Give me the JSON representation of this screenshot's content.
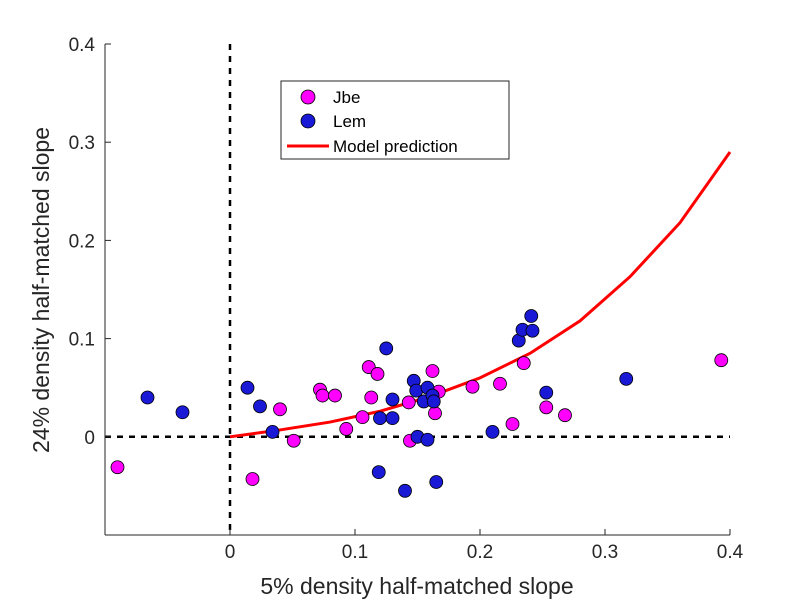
{
  "chart_data": {
    "type": "scatter",
    "title": "",
    "xlabel": "5% density half-matched slope",
    "ylabel": "24% density half-matched slope",
    "xlim": [
      -0.1,
      0.4
    ],
    "ylim": [
      -0.1,
      0.4
    ],
    "xticks": [
      {
        "value": 0,
        "label": "0"
      },
      {
        "value": 0.1,
        "label": "0.1"
      },
      {
        "value": 0.2,
        "label": "0.2"
      },
      {
        "value": 0.3,
        "label": "0.3"
      },
      {
        "value": 0.4,
        "label": "0.4"
      }
    ],
    "yticks": [
      {
        "value": 0,
        "label": "0"
      },
      {
        "value": 0.1,
        "label": "0.1"
      },
      {
        "value": 0.2,
        "label": "0.2"
      },
      {
        "value": 0.3,
        "label": "0.3"
      },
      {
        "value": 0.4,
        "label": "0.4"
      }
    ],
    "grid": false,
    "legend_position": "top-left (inside axes)",
    "reference_lines": [
      {
        "orientation": "vertical",
        "x": 0,
        "style": "dashed",
        "color": "#000000"
      },
      {
        "orientation": "horizontal",
        "y": 0,
        "style": "dashed",
        "color": "#000000"
      }
    ],
    "series": [
      {
        "name": "Jbe",
        "kind": "scatter",
        "marker": "circle",
        "color": "#ff00ff",
        "points": [
          {
            "x": -0.09,
            "y": -0.031
          },
          {
            "x": 0.018,
            "y": -0.043
          },
          {
            "x": 0.04,
            "y": 0.028
          },
          {
            "x": 0.051,
            "y": -0.004
          },
          {
            "x": 0.072,
            "y": 0.048
          },
          {
            "x": 0.074,
            "y": 0.042
          },
          {
            "x": 0.084,
            "y": 0.042
          },
          {
            "x": 0.093,
            "y": 0.008
          },
          {
            "x": 0.106,
            "y": 0.02
          },
          {
            "x": 0.111,
            "y": 0.071
          },
          {
            "x": 0.113,
            "y": 0.04
          },
          {
            "x": 0.118,
            "y": 0.064
          },
          {
            "x": 0.143,
            "y": 0.035
          },
          {
            "x": 0.144,
            "y": -0.004
          },
          {
            "x": 0.162,
            "y": 0.067
          },
          {
            "x": 0.164,
            "y": 0.024
          },
          {
            "x": 0.167,
            "y": 0.046
          },
          {
            "x": 0.194,
            "y": 0.051
          },
          {
            "x": 0.216,
            "y": 0.054
          },
          {
            "x": 0.226,
            "y": 0.013
          },
          {
            "x": 0.235,
            "y": 0.075
          },
          {
            "x": 0.253,
            "y": 0.03
          },
          {
            "x": 0.268,
            "y": 0.022
          },
          {
            "x": 0.393,
            "y": 0.078
          }
        ]
      },
      {
        "name": "Lem",
        "kind": "scatter",
        "marker": "circle",
        "color": "#1a1ad6",
        "points": [
          {
            "x": -0.066,
            "y": 0.04
          },
          {
            "x": -0.038,
            "y": 0.025
          },
          {
            "x": 0.014,
            "y": 0.05
          },
          {
            "x": 0.024,
            "y": 0.031
          },
          {
            "x": 0.034,
            "y": 0.005
          },
          {
            "x": 0.119,
            "y": -0.036
          },
          {
            "x": 0.12,
            "y": 0.019
          },
          {
            "x": 0.125,
            "y": 0.09
          },
          {
            "x": 0.13,
            "y": 0.038
          },
          {
            "x": 0.13,
            "y": 0.019
          },
          {
            "x": 0.14,
            "y": -0.055
          },
          {
            "x": 0.147,
            "y": 0.057
          },
          {
            "x": 0.149,
            "y": 0.047
          },
          {
            "x": 0.15,
            "y": 0.0
          },
          {
            "x": 0.155,
            "y": 0.036
          },
          {
            "x": 0.158,
            "y": -0.003
          },
          {
            "x": 0.158,
            "y": 0.05
          },
          {
            "x": 0.162,
            "y": 0.042
          },
          {
            "x": 0.163,
            "y": 0.036
          },
          {
            "x": 0.165,
            "y": -0.046
          },
          {
            "x": 0.21,
            "y": 0.005
          },
          {
            "x": 0.231,
            "y": 0.098
          },
          {
            "x": 0.234,
            "y": 0.109
          },
          {
            "x": 0.241,
            "y": 0.123
          },
          {
            "x": 0.242,
            "y": 0.108
          },
          {
            "x": 0.253,
            "y": 0.045
          },
          {
            "x": 0.317,
            "y": 0.059
          }
        ]
      },
      {
        "name": "Model prediction",
        "kind": "line",
        "color": "#ff0000",
        "points": [
          {
            "x": 0.0,
            "y": 0.0
          },
          {
            "x": 0.04,
            "y": 0.007
          },
          {
            "x": 0.08,
            "y": 0.015
          },
          {
            "x": 0.12,
            "y": 0.026
          },
          {
            "x": 0.16,
            "y": 0.041
          },
          {
            "x": 0.2,
            "y": 0.06
          },
          {
            "x": 0.24,
            "y": 0.085
          },
          {
            "x": 0.28,
            "y": 0.118
          },
          {
            "x": 0.32,
            "y": 0.163
          },
          {
            "x": 0.36,
            "y": 0.218
          },
          {
            "x": 0.4,
            "y": 0.29
          }
        ]
      }
    ]
  }
}
